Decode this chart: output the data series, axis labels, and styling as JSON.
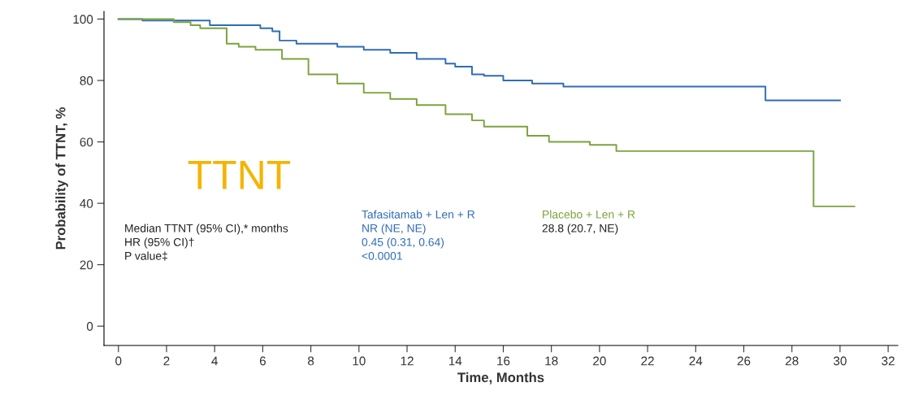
{
  "chart_data": {
    "type": "step",
    "xlabel": "Time, Months",
    "ylabel": "Probability of TTNT, %",
    "xlim": [
      -0.6,
      32.4
    ],
    "ylim": [
      -6.3,
      102.5
    ],
    "xticks": [
      0,
      2,
      4,
      6,
      8,
      10,
      12,
      14,
      16,
      18,
      20,
      22,
      24,
      26,
      28,
      30,
      32
    ],
    "yticks": [
      0,
      20,
      40,
      60,
      80,
      100
    ],
    "grid": false,
    "legend": false,
    "marker": "none",
    "line_style": "solid",
    "series": [
      {
        "name": "Tafasitamab + Len + R",
        "color": "#2f6db5",
        "x": [
          0,
          1,
          3.8,
          5.9,
          6.4,
          6.7,
          7.4,
          9.1,
          10.2,
          11.3,
          12.4,
          13.6,
          14.0,
          14.7,
          15.2,
          16.0,
          17.2,
          18.5,
          26.9,
          30.0
        ],
        "values": [
          100,
          99.5,
          98,
          97,
          96,
          93,
          92,
          91,
          90,
          89,
          87,
          85.5,
          84.5,
          82,
          81.5,
          80,
          79,
          78,
          73.5,
          73.5
        ]
      },
      {
        "name": "Placebo + Len + R",
        "color": "#7ca33c",
        "x": [
          0,
          2.3,
          3.0,
          3.4,
          4.5,
          5.0,
          5.7,
          6.8,
          7.9,
          9.1,
          10.2,
          11.3,
          12.4,
          13.6,
          14.7,
          15.2,
          17.0,
          17.9,
          19.6,
          20.7,
          28.9,
          30.6
        ],
        "values": [
          100,
          99,
          98,
          97,
          92,
          91,
          90,
          87,
          82,
          79,
          76,
          74,
          72,
          69,
          67,
          65,
          62,
          60,
          59,
          57,
          39,
          39
        ]
      }
    ],
    "annotations": [
      "TTNT",
      "Median TTNT (95% CI),* months",
      "NR (NE, NE)",
      "28.8 (20.7, NE)",
      "HR (95% CI)†",
      "0.45 (0.31, 0.64)",
      "P value‡",
      "<0.0001"
    ]
  }
}
